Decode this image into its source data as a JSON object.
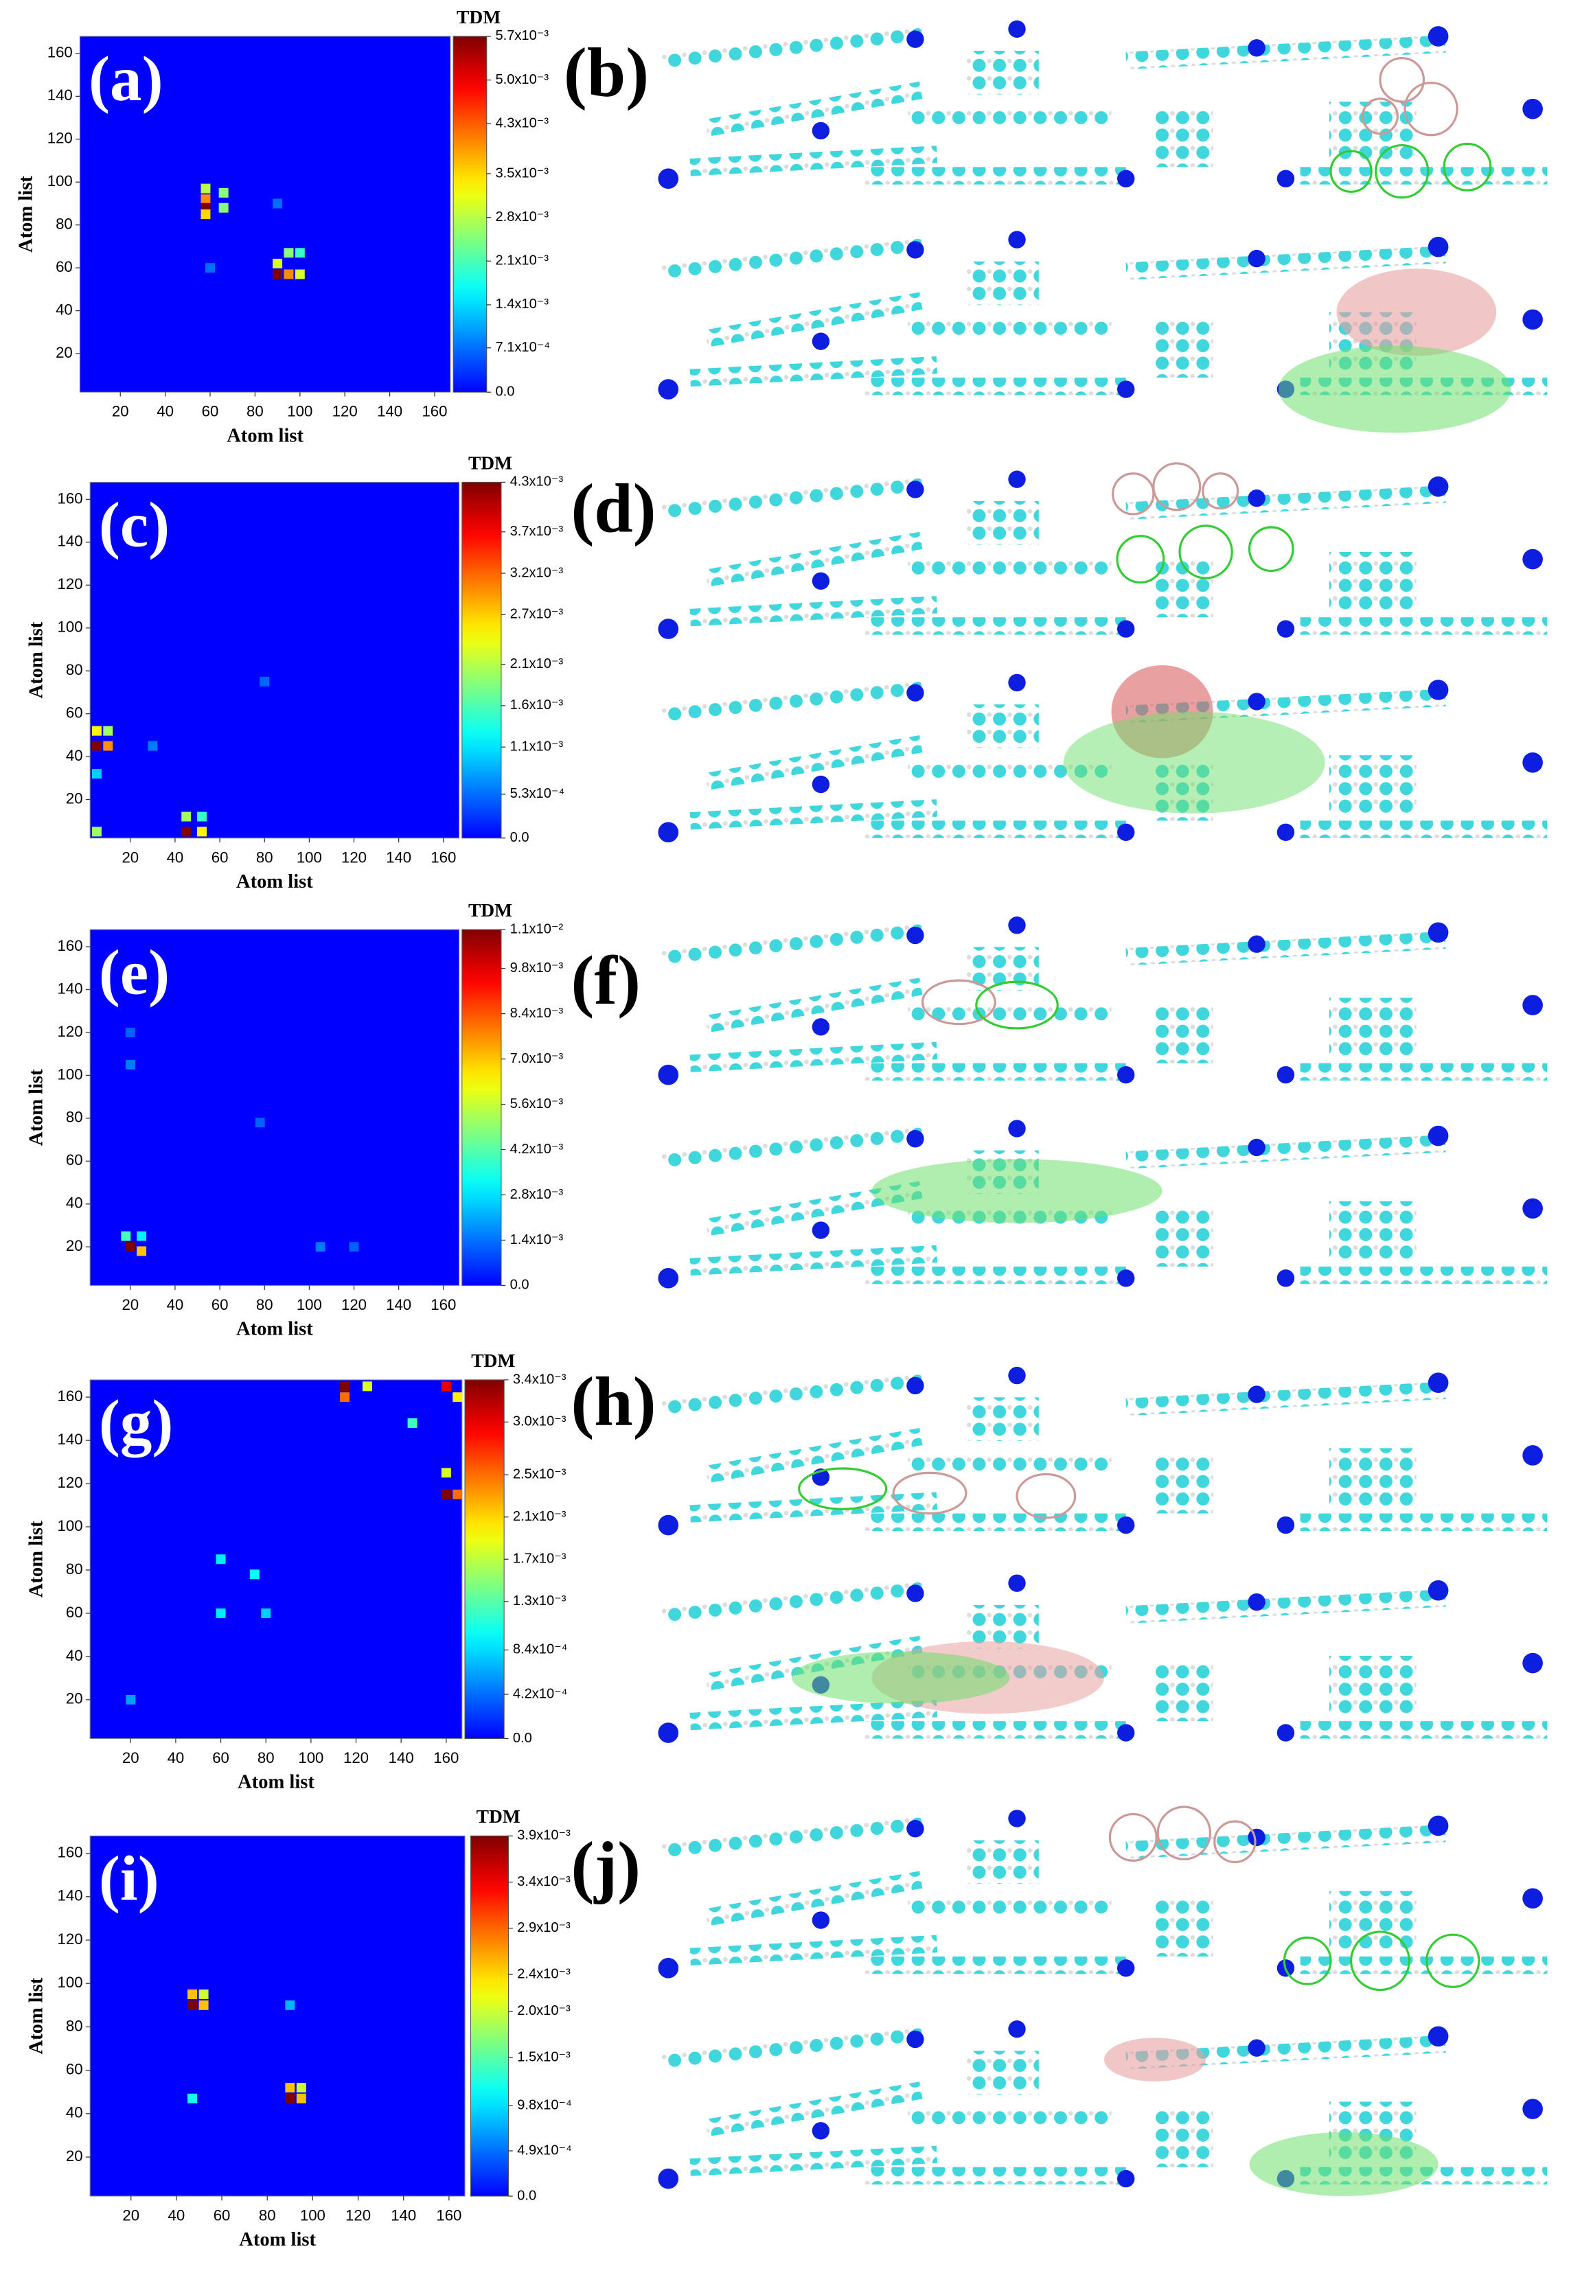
{
  "chart_data": [
    {
      "type": "heatmap",
      "panel_label": "(a)",
      "xlabel": "Atom list",
      "ylabel": "Atom list",
      "colorbar_title": "TDM",
      "xlim": [
        2,
        167
      ],
      "ylim": [
        2,
        168
      ],
      "xticks": [
        20,
        40,
        60,
        80,
        100,
        120,
        140,
        160
      ],
      "yticks": [
        20,
        40,
        60,
        80,
        100,
        120,
        140,
        160
      ],
      "clim": [
        0,
        0.0057
      ],
      "cticks": [
        {
          "value": 0,
          "label": "0.0"
        },
        {
          "value": 0.00071,
          "label": "7.1x10⁻⁴"
        },
        {
          "value": 0.0014,
          "label": "1.4x10⁻³"
        },
        {
          "value": 0.0021,
          "label": "2.1x10⁻³"
        },
        {
          "value": 0.0028,
          "label": "2.8x10⁻³"
        },
        {
          "value": 0.0035,
          "label": "3.5x10⁻³"
        },
        {
          "value": 0.0043,
          "label": "4.3x10⁻³"
        },
        {
          "value": 0.005,
          "label": "5.0x10⁻³"
        },
        {
          "value": 0.0057,
          "label": "5.7x10⁻³"
        }
      ],
      "cells": [
        {
          "x": 58,
          "y": 97,
          "value": 0.0028
        },
        {
          "x": 58,
          "y": 92,
          "value": 0.004
        },
        {
          "x": 58,
          "y": 88,
          "value": 0.0057
        },
        {
          "x": 58,
          "y": 85,
          "value": 0.0035
        },
        {
          "x": 66,
          "y": 95,
          "value": 0.0025
        },
        {
          "x": 66,
          "y": 88,
          "value": 0.0025
        },
        {
          "x": 90,
          "y": 57,
          "value": 0.0057
        },
        {
          "x": 90,
          "y": 62,
          "value": 0.003
        },
        {
          "x": 95,
          "y": 57,
          "value": 0.004
        },
        {
          "x": 95,
          "y": 67,
          "value": 0.0025
        },
        {
          "x": 100,
          "y": 57,
          "value": 0.003
        },
        {
          "x": 100,
          "y": 67,
          "value": 0.002
        },
        {
          "x": 60,
          "y": 60,
          "value": 0.0007
        },
        {
          "x": 90,
          "y": 90,
          "value": 0.0007
        }
      ]
    },
    {
      "type": "heatmap",
      "panel_label": "(c)",
      "xlabel": "Atom list",
      "ylabel": "Atom list",
      "colorbar_title": "TDM",
      "xlim": [
        2,
        167
      ],
      "ylim": [
        2,
        168
      ],
      "xticks": [
        20,
        40,
        60,
        80,
        100,
        120,
        140,
        160
      ],
      "yticks": [
        20,
        40,
        60,
        80,
        100,
        120,
        140,
        160
      ],
      "clim": [
        0,
        0.0043
      ],
      "cticks": [
        {
          "value": 0,
          "label": "0.0"
        },
        {
          "value": 0.00053,
          "label": "5.3x10⁻⁴"
        },
        {
          "value": 0.0011,
          "label": "1.1x10⁻³"
        },
        {
          "value": 0.0016,
          "label": "1.6x10⁻³"
        },
        {
          "value": 0.0021,
          "label": "2.1x10⁻³"
        },
        {
          "value": 0.0027,
          "label": "2.7x10⁻³"
        },
        {
          "value": 0.0032,
          "label": "3.2x10⁻³"
        },
        {
          "value": 0.0037,
          "label": "3.7x10⁻³"
        },
        {
          "value": 0.0043,
          "label": "4.3x10⁻³"
        }
      ],
      "cells": [
        {
          "x": 5,
          "y": 45,
          "value": 0.0043
        },
        {
          "x": 5,
          "y": 52,
          "value": 0.0025
        },
        {
          "x": 10,
          "y": 45,
          "value": 0.003
        },
        {
          "x": 10,
          "y": 52,
          "value": 0.002
        },
        {
          "x": 5,
          "y": 32,
          "value": 0.001
        },
        {
          "x": 45,
          "y": 5,
          "value": 0.0043
        },
        {
          "x": 45,
          "y": 12,
          "value": 0.002
        },
        {
          "x": 52,
          "y": 5,
          "value": 0.0025
        },
        {
          "x": 5,
          "y": 5,
          "value": 0.002
        },
        {
          "x": 52,
          "y": 12,
          "value": 0.0015
        },
        {
          "x": 30,
          "y": 45,
          "value": 0.0006
        },
        {
          "x": 80,
          "y": 75,
          "value": 0.0005
        }
      ]
    },
    {
      "type": "heatmap",
      "panel_label": "(e)",
      "xlabel": "Atom list",
      "ylabel": "Atom list",
      "colorbar_title": "TDM",
      "xlim": [
        2,
        167
      ],
      "ylim": [
        2,
        168
      ],
      "xticks": [
        20,
        40,
        60,
        80,
        100,
        120,
        140,
        160
      ],
      "yticks": [
        20,
        40,
        60,
        80,
        100,
        120,
        140,
        160
      ],
      "clim": [
        0,
        0.011
      ],
      "cticks": [
        {
          "value": 0,
          "label": "0.0"
        },
        {
          "value": 0.0014,
          "label": "1.4x10⁻³"
        },
        {
          "value": 0.0028,
          "label": "2.8x10⁻³"
        },
        {
          "value": 0.0042,
          "label": "4.2x10⁻³"
        },
        {
          "value": 0.0056,
          "label": "5.6x10⁻³"
        },
        {
          "value": 0.007,
          "label": "7.0x10⁻³"
        },
        {
          "value": 0.0084,
          "label": "8.4x10⁻³"
        },
        {
          "value": 0.0098,
          "label": "9.8x10⁻³"
        },
        {
          "value": 0.011,
          "label": "1.1x10⁻²"
        }
      ],
      "cells": [
        {
          "x": 20,
          "y": 20,
          "value": 0.011
        },
        {
          "x": 25,
          "y": 18,
          "value": 0.007
        },
        {
          "x": 18,
          "y": 25,
          "value": 0.004
        },
        {
          "x": 25,
          "y": 25,
          "value": 0.003
        },
        {
          "x": 20,
          "y": 105,
          "value": 0.0015
        },
        {
          "x": 20,
          "y": 120,
          "value": 0.0012
        },
        {
          "x": 105,
          "y": 20,
          "value": 0.0015
        },
        {
          "x": 120,
          "y": 20,
          "value": 0.0012
        },
        {
          "x": 78,
          "y": 78,
          "value": 0.0012
        }
      ]
    },
    {
      "type": "heatmap",
      "panel_label": "(g)",
      "xlabel": "Atom list",
      "ylabel": "Atom list",
      "colorbar_title": "TDM",
      "xlim": [
        2,
        167
      ],
      "ylim": [
        2,
        168
      ],
      "xticks": [
        20,
        40,
        60,
        80,
        100,
        120,
        140,
        160
      ],
      "yticks": [
        20,
        40,
        60,
        80,
        100,
        120,
        140,
        160
      ],
      "clim": [
        0,
        0.0034
      ],
      "cticks": [
        {
          "value": 0,
          "label": "0.0"
        },
        {
          "value": 0.00042,
          "label": "4.2x10⁻⁴"
        },
        {
          "value": 0.00084,
          "label": "8.4x10⁻⁴"
        },
        {
          "value": 0.0013,
          "label": "1.3x10⁻³"
        },
        {
          "value": 0.0017,
          "label": "1.7x10⁻³"
        },
        {
          "value": 0.0021,
          "label": "2.1x10⁻³"
        },
        {
          "value": 0.0025,
          "label": "2.5x10⁻³"
        },
        {
          "value": 0.003,
          "label": "3.0x10⁻³"
        },
        {
          "value": 0.0034,
          "label": "3.4x10⁻³"
        }
      ],
      "cells": [
        {
          "x": 115,
          "y": 165,
          "value": 0.0034
        },
        {
          "x": 115,
          "y": 160,
          "value": 0.0025
        },
        {
          "x": 125,
          "y": 165,
          "value": 0.0018
        },
        {
          "x": 160,
          "y": 115,
          "value": 0.0034
        },
        {
          "x": 165,
          "y": 115,
          "value": 0.0025
        },
        {
          "x": 160,
          "y": 125,
          "value": 0.0018
        },
        {
          "x": 160,
          "y": 165,
          "value": 0.003
        },
        {
          "x": 165,
          "y": 160,
          "value": 0.002
        },
        {
          "x": 145,
          "y": 148,
          "value": 0.0012
        },
        {
          "x": 60,
          "y": 85,
          "value": 0.0009
        },
        {
          "x": 75,
          "y": 78,
          "value": 0.001
        },
        {
          "x": 60,
          "y": 60,
          "value": 0.0009
        },
        {
          "x": 80,
          "y": 60,
          "value": 0.0008
        },
        {
          "x": 20,
          "y": 20,
          "value": 0.0006
        }
      ]
    },
    {
      "type": "heatmap",
      "panel_label": "(i)",
      "xlabel": "Atom list",
      "ylabel": "Atom list",
      "colorbar_title": "TDM",
      "xlim": [
        2,
        167
      ],
      "ylim": [
        2,
        168
      ],
      "xticks": [
        20,
        40,
        60,
        80,
        100,
        120,
        140,
        160
      ],
      "yticks": [
        20,
        40,
        60,
        80,
        100,
        120,
        140,
        160
      ],
      "clim": [
        0,
        0.0039
      ],
      "cticks": [
        {
          "value": 0,
          "label": "0.0"
        },
        {
          "value": 0.00049,
          "label": "4.9x10⁻⁴"
        },
        {
          "value": 0.00098,
          "label": "9.8x10⁻⁴"
        },
        {
          "value": 0.0015,
          "label": "1.5x10⁻³"
        },
        {
          "value": 0.002,
          "label": "2.0x10⁻³"
        },
        {
          "value": 0.0024,
          "label": "2.4x10⁻³"
        },
        {
          "value": 0.0029,
          "label": "2.9x10⁻³"
        },
        {
          "value": 0.0034,
          "label": "3.4x10⁻³"
        },
        {
          "value": 0.0039,
          "label": "3.9x10⁻³"
        }
      ],
      "cells": [
        {
          "x": 47,
          "y": 90,
          "value": 0.0039
        },
        {
          "x": 47,
          "y": 95,
          "value": 0.0025
        },
        {
          "x": 52,
          "y": 90,
          "value": 0.0025
        },
        {
          "x": 52,
          "y": 95,
          "value": 0.002
        },
        {
          "x": 90,
          "y": 47,
          "value": 0.0039
        },
        {
          "x": 95,
          "y": 47,
          "value": 0.0025
        },
        {
          "x": 90,
          "y": 52,
          "value": 0.0025
        },
        {
          "x": 95,
          "y": 52,
          "value": 0.002
        },
        {
          "x": 47,
          "y": 47,
          "value": 0.0012
        },
        {
          "x": 90,
          "y": 90,
          "value": 0.0008
        }
      ]
    }
  ],
  "images": [
    {
      "label": "(b)"
    },
    {
      "label": "(d)"
    },
    {
      "label": "(f)"
    },
    {
      "label": "(h)"
    },
    {
      "label": "(j)"
    }
  ]
}
